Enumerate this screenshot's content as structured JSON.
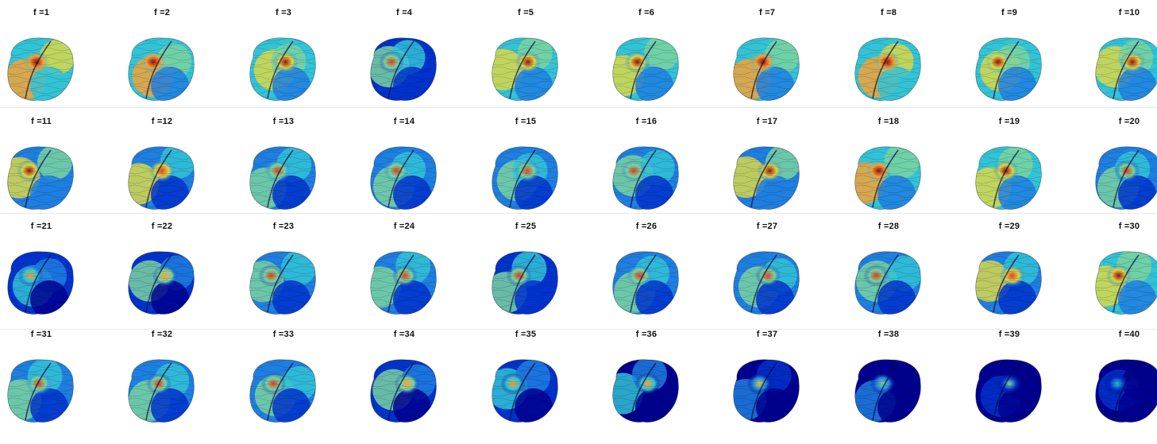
{
  "figure": {
    "labels": [
      "f =1",
      "f =2",
      "f =3",
      "f =4",
      "f =5",
      "f =6",
      "f =7",
      "f =8",
      "f =9",
      "f =10",
      "f =11",
      "f =12",
      "f =13",
      "f =14",
      "f =15",
      "f =16",
      "f =17",
      "f =18",
      "f =19",
      "f =20",
      "f =21",
      "f =22",
      "f =23",
      "f =24",
      "f =25",
      "f =26",
      "f =27",
      "f =28",
      "f =29",
      "f =30",
      "f =31",
      "f =32",
      "f =33",
      "f =34",
      "f =35",
      "f =36",
      "f =37",
      "f =38",
      "f =39",
      "f =40"
    ],
    "columns": 10,
    "rows": 4,
    "colormap": [
      "#00008f",
      "#0033cc",
      "#1f7fe0",
      "#33c3d6",
      "#7ad4a0",
      "#d9d84a",
      "#f2a33a",
      "#e0431f",
      "#a01010"
    ],
    "activation_levels": [
      0.72,
      0.7,
      0.66,
      0.48,
      0.62,
      0.66,
      0.7,
      0.72,
      0.68,
      0.62,
      0.6,
      0.58,
      0.56,
      0.54,
      0.56,
      0.56,
      0.6,
      0.7,
      0.66,
      0.5,
      0.42,
      0.46,
      0.52,
      0.5,
      0.48,
      0.54,
      0.52,
      0.5,
      0.58,
      0.62,
      0.56,
      0.52,
      0.52,
      0.46,
      0.4,
      0.34,
      0.26,
      0.2,
      0.12,
      0.08
    ]
  }
}
